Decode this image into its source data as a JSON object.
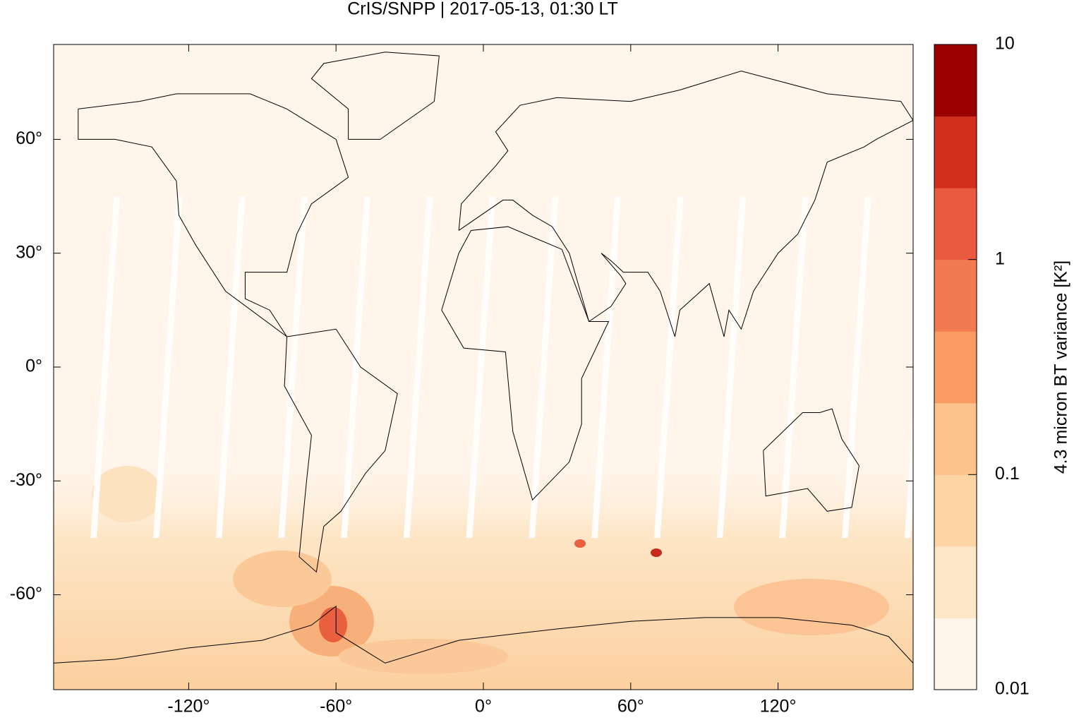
{
  "title": "CrIS/SNPP | 2017-05-13, 01:30 LT",
  "map": {
    "xlim": [
      -175,
      175
    ],
    "ylim": [
      -85,
      85
    ],
    "xticks": [
      {
        "value": -120,
        "label": "-120°"
      },
      {
        "value": -60,
        "label": "-60°"
      },
      {
        "value": 0,
        "label": "0°"
      },
      {
        "value": 60,
        "label": "60°"
      },
      {
        "value": 120,
        "label": "120°"
      }
    ],
    "yticks": [
      {
        "value": 60,
        "label": "60°"
      },
      {
        "value": 30,
        "label": "30°"
      },
      {
        "value": 0,
        "label": "0°"
      },
      {
        "value": -30,
        "label": "-30°"
      },
      {
        "value": -60,
        "label": "-60°"
      }
    ]
  },
  "colorbar": {
    "label": "4.3 micron BT variance [K²]",
    "lim": [
      0.01,
      10
    ],
    "log": true,
    "ticks": [
      0.01,
      0.1,
      1,
      10
    ],
    "colors": [
      "#fff5eb",
      "#fde6c6",
      "#fdd4a4",
      "#fdc38d",
      "#f99b62",
      "#f27a50",
      "#e95a3e",
      "#d32f1e",
      "#9b0000"
    ]
  }
}
